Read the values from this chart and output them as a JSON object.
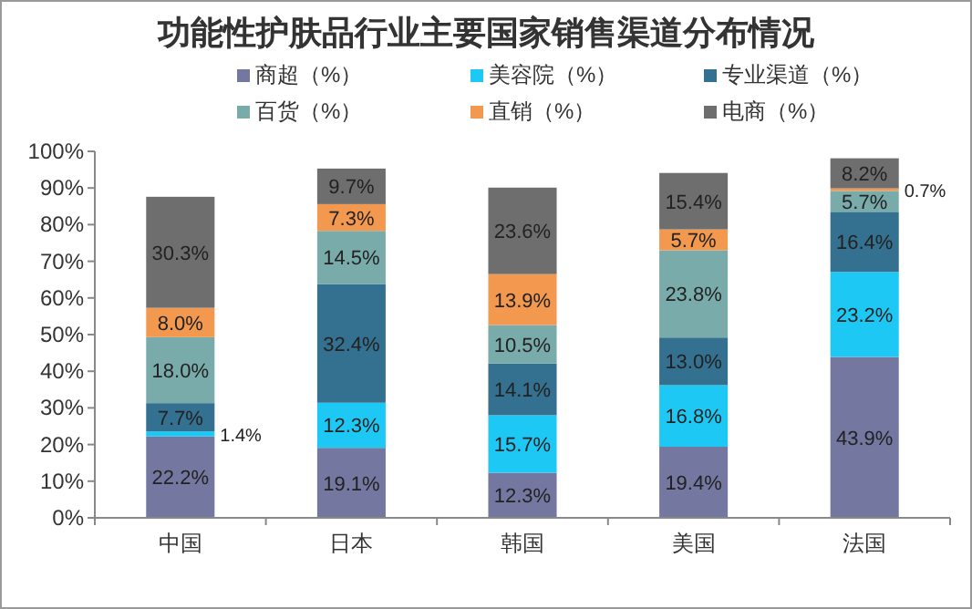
{
  "chart_data": {
    "type": "bar",
    "stacked": true,
    "title": "功能性护肤品行业主要国家销售渠道分布情况",
    "categories": [
      "中国",
      "日本",
      "韩国",
      "美国",
      "法国"
    ],
    "series": [
      {
        "name": "商超（%）",
        "color": "#7477a0",
        "values": [
          22.2,
          19.1,
          12.3,
          19.4,
          43.9
        ]
      },
      {
        "name": "美容院（%）",
        "color": "#1ec8f5",
        "values": [
          1.4,
          12.3,
          15.7,
          16.8,
          23.2
        ]
      },
      {
        "name": "专业渠道（%）",
        "color": "#34708f",
        "values": [
          7.7,
          32.4,
          14.1,
          13.0,
          16.4
        ]
      },
      {
        "name": "百货（%）",
        "color": "#7aabab",
        "values": [
          18.0,
          14.5,
          10.5,
          23.8,
          5.7
        ]
      },
      {
        "name": "直销（%）",
        "color": "#f3984f",
        "values": [
          8.0,
          7.3,
          13.9,
          5.7,
          0.7
        ]
      },
      {
        "name": "电商（%）",
        "color": "#6e6e6e",
        "values": [
          30.3,
          9.7,
          23.6,
          15.4,
          8.2
        ]
      }
    ],
    "value_labels": [
      [
        "22.2%",
        "19.1%",
        "12.3%",
        "19.4%",
        "43.9%"
      ],
      [
        "1.4%",
        "12.3%",
        "15.7%",
        "16.8%",
        "23.2%"
      ],
      [
        "7.7%",
        "32.4%",
        "14.1%",
        "13.0%",
        "16.4%"
      ],
      [
        "18.0%",
        "14.5%",
        "10.5%",
        "23.8%",
        "5.7%"
      ],
      [
        "8.0%",
        "7.3%",
        "13.9%",
        "5.7%",
        "0.7%"
      ],
      [
        "30.3%",
        "9.7%",
        "23.6%",
        "15.4%",
        "8.2%"
      ]
    ],
    "ylim": [
      0,
      100
    ],
    "yticks": [
      {
        "value": 0,
        "label": "0%"
      },
      {
        "value": 10,
        "label": "10%"
      },
      {
        "value": 20,
        "label": "20%"
      },
      {
        "value": 30,
        "label": "30%"
      },
      {
        "value": 40,
        "label": "40%"
      },
      {
        "value": 50,
        "label": "50%"
      },
      {
        "value": 60,
        "label": "60%"
      },
      {
        "value": 70,
        "label": "70%"
      },
      {
        "value": 80,
        "label": "80%"
      },
      {
        "value": 90,
        "label": "90%"
      },
      {
        "value": 100,
        "label": "100%"
      }
    ],
    "legend": "top"
  }
}
